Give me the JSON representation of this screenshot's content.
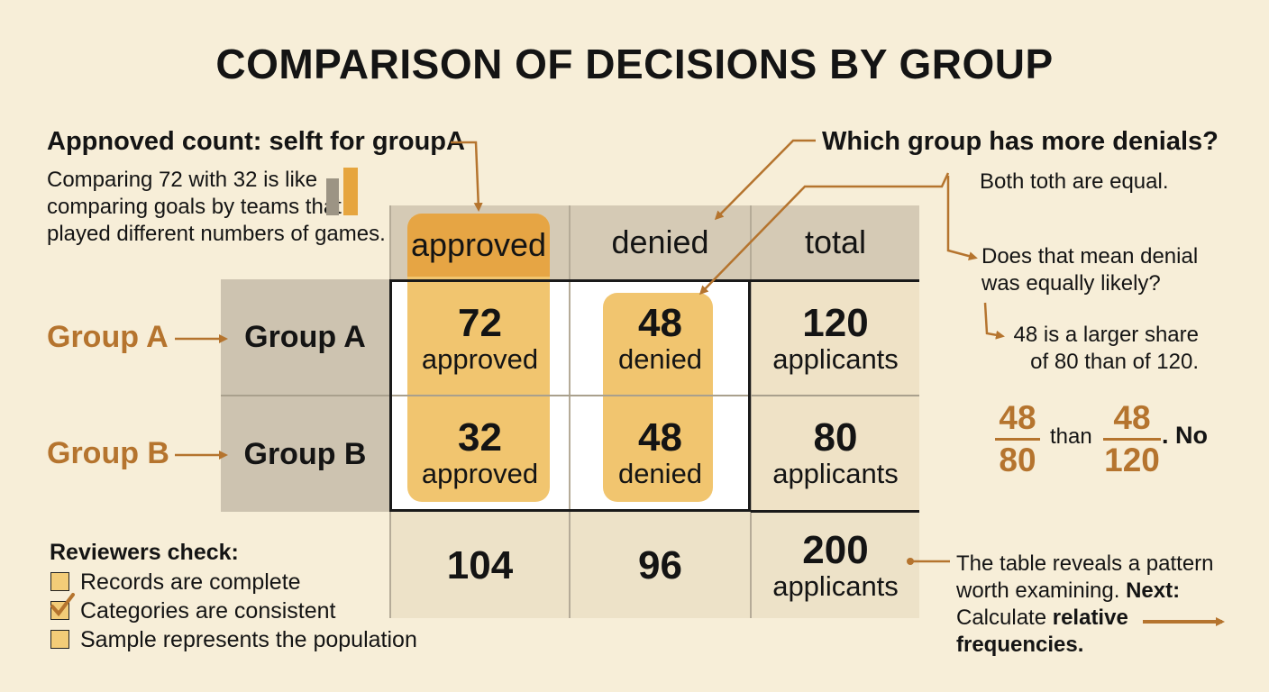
{
  "title": "COMPARISON OF DECISIONS BY GROUP",
  "left_note": {
    "heading": "Appnoved count: selft for groupA",
    "lines": [
      "Comparing 72 with 32 is like",
      "comparing goals by teams that",
      "played different numbers of games."
    ]
  },
  "right_note": {
    "question": "Which group has more denials?",
    "answer": "Both toth are equal.",
    "followup_lines": [
      "Does that mean denial",
      "was equally likely?"
    ],
    "insight_lines": [
      "48 is a larger share",
      "of 80 than of 120."
    ],
    "fraction_left": {
      "num": "48",
      "den": "80"
    },
    "fraction_between": "than",
    "fraction_right": {
      "num": "48",
      "den": "120"
    },
    "fraction_tail": ". No"
  },
  "table": {
    "headers": {
      "approved": "approved",
      "denied": "denied",
      "total": "total"
    },
    "rows": [
      {
        "outer_label": "Group A",
        "label": "Group A",
        "approved": "72",
        "approved_unit": "approved",
        "denied": "48",
        "denied_unit": "denied",
        "total": "120",
        "total_unit": "applicants"
      },
      {
        "outer_label": "Group B",
        "label": "Group B",
        "approved": "32",
        "approved_unit": "approved",
        "denied": "48",
        "denied_unit": "denied",
        "total": "80",
        "total_unit": "applicants"
      }
    ],
    "totals": {
      "approved": "104",
      "denied": "96",
      "total": "200",
      "total_unit": "applicants"
    }
  },
  "checklist": {
    "heading": "Reviewers check:",
    "items": [
      {
        "label": "Records are complete",
        "checked": false
      },
      {
        "label": "Categories are consistent",
        "checked": true
      },
      {
        "label": "Sample represents the population",
        "checked": false
      }
    ]
  },
  "conclusion": {
    "line1": "The table reveals a pattern",
    "line2_pre": "worth examining. ",
    "line2_bold": "Next:",
    "line3_pre": "Calculate ",
    "line3_bold": "relative",
    "line4_bold": "frequencies."
  },
  "colors": {
    "background": "#f7eed8",
    "accent": "#b5742e",
    "highlight": "#f1c56f",
    "row_header": "#cdc3b0",
    "col_header": "#d5cab5",
    "total_col": "#efe2c6"
  }
}
